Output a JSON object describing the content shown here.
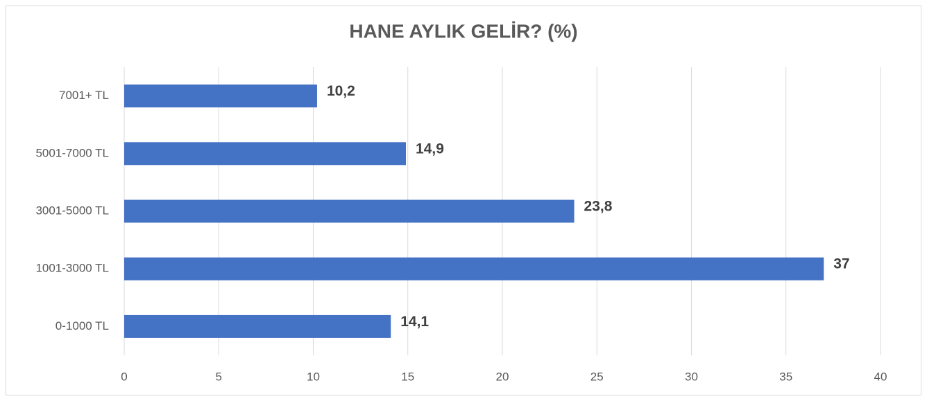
{
  "chart_data": {
    "type": "barh",
    "title": "HANE AYLIK GELİR? (%)",
    "categories": [
      "7001+ TL",
      "5001-7000 TL",
      "3001-5000 TL",
      "1001-3000 TL",
      "0-1000 TL"
    ],
    "values": [
      10.2,
      14.9,
      23.8,
      37,
      14.1
    ],
    "value_labels": [
      "10,2",
      "14,9",
      "23,8",
      "37",
      "14,1"
    ],
    "color": "#4472c4",
    "xlim": [
      0,
      40
    ],
    "xticks": [
      0,
      5,
      10,
      15,
      20,
      25,
      30,
      35,
      40
    ],
    "grid": true
  }
}
